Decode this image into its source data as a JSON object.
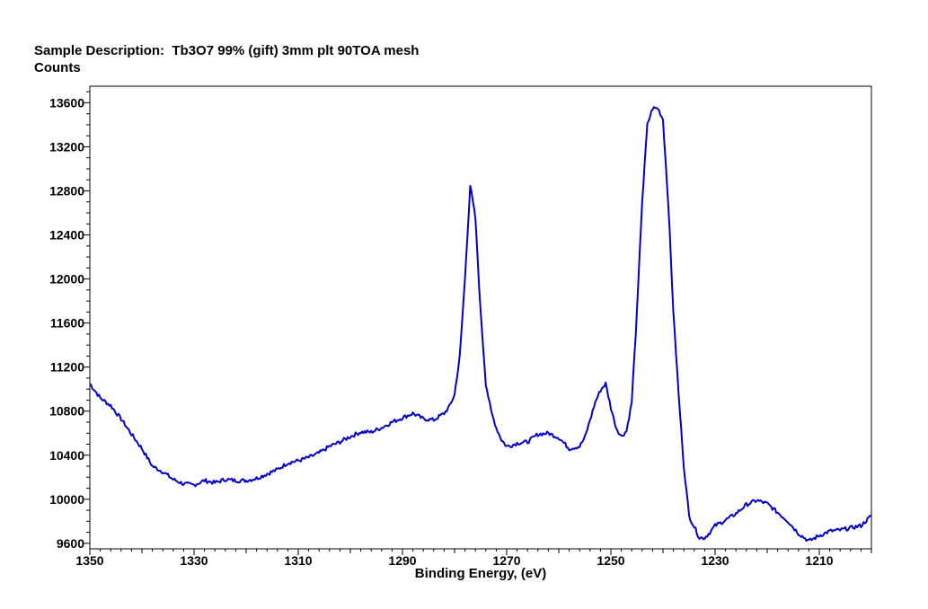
{
  "header": {
    "description_label": "Sample Description:",
    "description_value": "Tb3O7 99% (gift) 3mm plt 90TOA mesh"
  },
  "chart_data": {
    "type": "line",
    "title": "",
    "xlabel": "Binding Energy, (eV)",
    "ylabel": "Counts",
    "xlim": [
      1350,
      1200
    ],
    "ylim": [
      9550,
      13750
    ],
    "x_reversed": true,
    "grid": false,
    "x_ticks": [
      1350,
      1330,
      1310,
      1290,
      1270,
      1250,
      1230,
      1210
    ],
    "y_ticks": [
      9600,
      10000,
      10400,
      10800,
      11200,
      11600,
      12000,
      12400,
      12800,
      13200,
      13600
    ],
    "line_color": "#0000cc",
    "series": [
      {
        "x": [
          1350,
          1348,
          1346,
          1344,
          1342,
          1340,
          1338,
          1336,
          1334,
          1332,
          1330,
          1328,
          1326,
          1324,
          1322,
          1320,
          1318,
          1316,
          1314,
          1312,
          1310,
          1308,
          1306,
          1304,
          1302,
          1300,
          1298,
          1296,
          1294,
          1292,
          1290,
          1288,
          1286,
          1284,
          1282,
          1281,
          1280,
          1279,
          1278,
          1277,
          1276,
          1275,
          1274,
          1273,
          1272,
          1271,
          1270,
          1269,
          1268,
          1266,
          1264,
          1262,
          1260,
          1258,
          1256,
          1255,
          1254,
          1253,
          1252,
          1251,
          1250,
          1249,
          1248,
          1247,
          1246,
          1245,
          1244,
          1243,
          1242,
          1241,
          1240,
          1239,
          1238,
          1237,
          1236,
          1235,
          1234,
          1233,
          1232,
          1231,
          1230,
          1228,
          1226,
          1224,
          1222,
          1220,
          1218,
          1216,
          1214,
          1212,
          1210,
          1208,
          1206,
          1204,
          1202,
          1200
        ],
        "values": [
          11050,
          10920,
          10850,
          10730,
          10590,
          10460,
          10300,
          10250,
          10180,
          10140,
          10130,
          10170,
          10150,
          10180,
          10170,
          10170,
          10190,
          10230,
          10270,
          10330,
          10350,
          10380,
          10420,
          10480,
          10520,
          10570,
          10610,
          10610,
          10650,
          10700,
          10740,
          10780,
          10730,
          10720,
          10780,
          10840,
          10950,
          11300,
          12000,
          12850,
          12550,
          11700,
          11050,
          10800,
          10650,
          10540,
          10480,
          10490,
          10510,
          10520,
          10590,
          10600,
          10560,
          10460,
          10480,
          10560,
          10720,
          10880,
          10990,
          11050,
          10830,
          10650,
          10570,
          10620,
          10880,
          11700,
          12700,
          13400,
          13550,
          13550,
          13450,
          12700,
          11700,
          10950,
          10300,
          9850,
          9750,
          9650,
          9650,
          9700,
          9760,
          9810,
          9870,
          9950,
          9990,
          9960,
          9880,
          9800,
          9690,
          9620,
          9670,
          9710,
          9720,
          9740,
          9760,
          9850
        ]
      }
    ]
  }
}
